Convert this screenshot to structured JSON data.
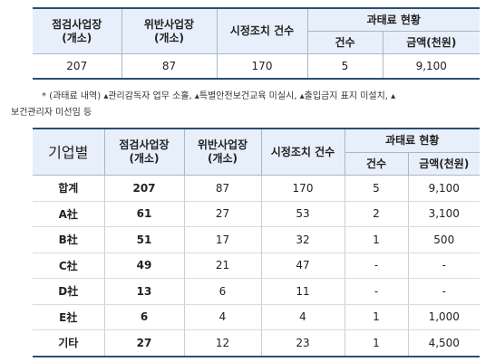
{
  "summary_table": {
    "headers": {
      "inspected": "점검사업장\n(개소)",
      "violated": "위반사업장\n(개소)",
      "corrective": "시정조치 건수",
      "fine_group": "과태료 현황",
      "fine_count": "건수",
      "fine_amount": "금액(천원)"
    },
    "row": [
      "207",
      "87",
      "170",
      "5",
      "9,100"
    ]
  },
  "note": {
    "line1": "* (과태료 내역) ▴관리감독자 업무 소홀, ▴특별안전보건교육 미실시, ▴출입금지 표지 미설치, ▴",
    "line2": "보건관리자 미선임 등"
  },
  "company_table": {
    "headers": {
      "company": "기업별",
      "inspected": "점검사업장\n(개소)",
      "violated": "위반사업장\n(개소)",
      "corrective": "시정조치 건수",
      "fine_group": "과태료 현황",
      "fine_count": "건수",
      "fine_amount": "금액(천원)"
    },
    "rows": [
      [
        "합계",
        "207",
        "87",
        "170",
        "5",
        "9,100"
      ],
      [
        "A社",
        "61",
        "27",
        "53",
        "2",
        "3,100"
      ],
      [
        "B社",
        "51",
        "17",
        "32",
        "1",
        "500"
      ],
      [
        "C社",
        "49",
        "21",
        "47",
        "-",
        "-"
      ],
      [
        "D社",
        "13",
        "6",
        "11",
        "-",
        "-"
      ],
      [
        "E社",
        "6",
        "4",
        "4",
        "1",
        "1,000"
      ],
      [
        "기타",
        "27",
        "12",
        "23",
        "1",
        "4,500"
      ]
    ]
  }
}
